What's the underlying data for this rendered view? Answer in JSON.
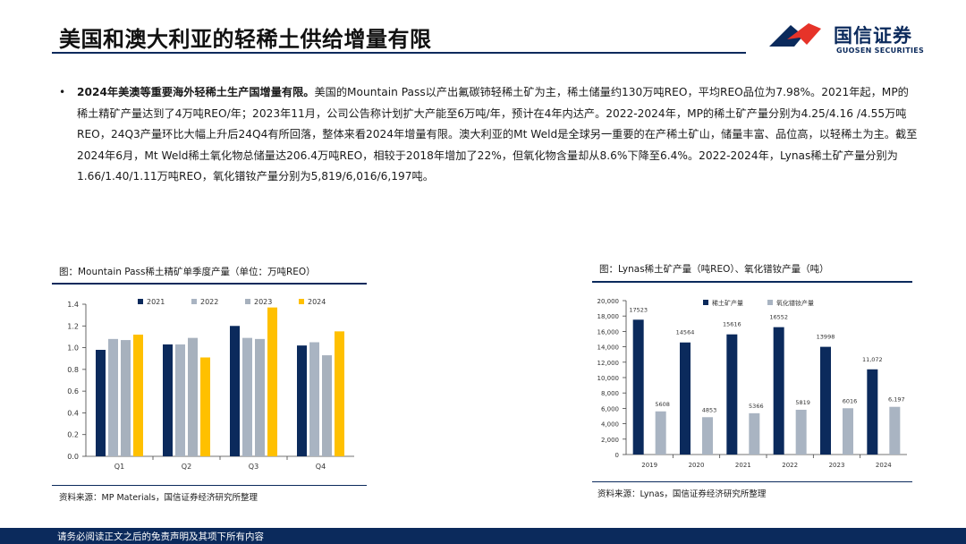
{
  "header": {
    "title": "美国和澳大利亚的轻稀土供给增量有限",
    "logo_cn": "国信证券",
    "logo_en": "GUOSEN SECURITIES"
  },
  "colors": {
    "navy": "#0b2a5c",
    "red": "#e63329",
    "c2021": "#0b2a5c",
    "c2022": "#a9b4c2",
    "c2023": "#a7b1bd",
    "c2024": "#ffc000",
    "ore": "#0b2a5c",
    "oxide": "#a9b4c2"
  },
  "paragraph": {
    "bullet": "•",
    "bold": "2024年美澳等重要海外轻稀土生产国增量有限。",
    "text": "美国的Mountain Pass以产出氟碳铈轻稀土矿为主，稀土储量约130万吨REO，平均REO品位为7.98%。2021年起，MP的稀土精矿产量达到了4万吨REO/年；2023年11月，公司公告称计划扩大产能至6万吨/年，预计在4年内达产。2022-2024年，MP的稀土矿产量分别为4.25/4.16 /4.55万吨REO，24Q3产量环比大幅上升后24Q4有所回落，整体来看2024年增量有限。澳大利亚的Mt Weld是全球另一重要的在产稀土矿山，储量丰富、品位高，以轻稀土为主。截至2024年6月，Mt Weld稀土氧化物总储量达206.4万吨REO，相较于2018年增加了22%，但氧化物含量却从8.6%下降至6.4%。2022-2024年，Lynas稀土矿产量分别为1.66/1.40/1.11万吨REO，氧化镨钕产量分别为5,819/6,016/6,197吨。"
  },
  "left_panel": {
    "caption": "图：Mountain Pass稀土精矿单季度产量（单位：万吨REO）",
    "source": "资料来源：MP Materials，国信证券经济研究所整理"
  },
  "right_panel": {
    "caption": "图：Lynas稀土矿产量（吨REO）、氧化镨钕产量（吨）",
    "source": "资料来源：Lynas，国信证券经济研究所整理"
  },
  "footer": {
    "text": "请务必阅读正文之后的免责声明及其项下所有内容"
  },
  "chart_data": [
    {
      "type": "bar",
      "title": "Mountain Pass稀土精矿单季度产量（单位：万吨REO）",
      "categories": [
        "Q1",
        "Q2",
        "Q3",
        "Q4"
      ],
      "series": [
        {
          "name": "2021",
          "values": [
            0.98,
            1.03,
            1.2,
            1.02
          ]
        },
        {
          "name": "2022",
          "values": [
            1.08,
            1.03,
            1.09,
            1.05
          ]
        },
        {
          "name": "2023",
          "values": [
            1.07,
            1.09,
            1.08,
            0.93
          ]
        },
        {
          "name": "2024",
          "values": [
            1.12,
            0.91,
            1.37,
            1.15
          ]
        }
      ],
      "ylim": [
        0,
        1.4
      ],
      "yticks": [
        "0.0",
        "0.2",
        "0.4",
        "0.6",
        "0.8",
        "1.0",
        "1.2",
        "1.4"
      ],
      "legend": "top",
      "xlabel": "",
      "ylabel": ""
    },
    {
      "type": "bar",
      "title": "Lynas稀土矿产量（吨REO）、氧化镨钕产量（吨）",
      "categories": [
        "2019",
        "2020",
        "2021",
        "2022",
        "2023",
        "2024"
      ],
      "series": [
        {
          "name": "稀土矿产量",
          "values": [
            17523,
            14564,
            15616,
            16552,
            13998,
            11072
          ],
          "labels": [
            "17523",
            "14564",
            "15616",
            "16552",
            "13998",
            "11,072"
          ]
        },
        {
          "name": "氧化镨钕产量",
          "values": [
            5608,
            4853,
            5366,
            5819,
            6016,
            6197
          ],
          "labels": [
            "5608",
            "4853",
            "5366",
            "5819",
            "6016",
            "6,197"
          ]
        }
      ],
      "ylim": [
        0,
        20000
      ],
      "yticks": [
        "0",
        "2,000",
        "4,000",
        "6,000",
        "8,000",
        "10,000",
        "12,000",
        "14,000",
        "16,000",
        "18,000",
        "20,000"
      ],
      "legend": "top",
      "xlabel": "",
      "ylabel": ""
    }
  ]
}
